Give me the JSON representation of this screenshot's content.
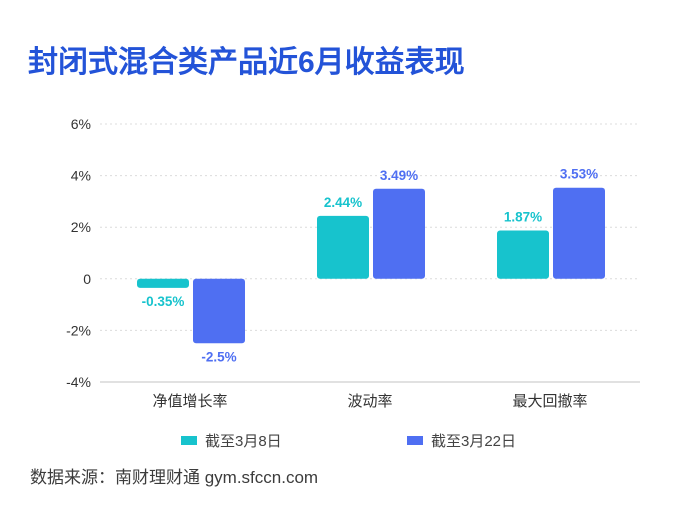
{
  "source": "数据来源：南财理财通 gym.sfccn.com",
  "chart_data": {
    "type": "bar",
    "title": "封闭式混合类产品近6月收益表现",
    "xlabel": "",
    "ylabel": "",
    "categories": [
      "净值增长率",
      "波动率",
      "最大回撤率"
    ],
    "series": [
      {
        "name": "截至3月8日",
        "values": [
          -0.35,
          2.44,
          1.87
        ],
        "data_labels": [
          "-0.35%",
          "2.44%",
          "1.87%"
        ],
        "color": "#17c3cd"
      },
      {
        "name": "截至3月22日",
        "values": [
          -2.5,
          3.49,
          3.53
        ],
        "data_labels": [
          "-2.5%",
          "3.49%",
          "3.53%"
        ],
        "color": "#4f6ff2"
      }
    ],
    "ylim": [
      -4,
      6
    ],
    "yticks": [
      6,
      4,
      2,
      0,
      -2,
      -4
    ],
    "ytick_labels": [
      "6%",
      "4%",
      "2%",
      "0",
      "-2%",
      "-4%"
    ],
    "grid": true,
    "grid_style": "dotted",
    "legend": "bottom"
  }
}
